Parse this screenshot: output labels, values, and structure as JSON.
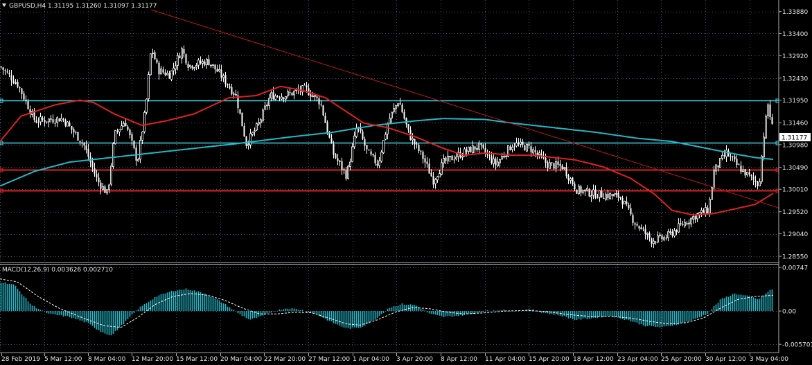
{
  "header": {
    "symbol_line": "GBPUSD,H4  1.31195 1.31260 1.31097 1.31177",
    "current_price": "1.31177"
  },
  "macd_header": "MACD(12,26,9) 0.003626 0.002710",
  "colors": {
    "background": "#000000",
    "grid": "#4d5566",
    "candle": "#ffffff",
    "ma_fast": "#e02020",
    "ma_slow": "#20b8c8",
    "level_cyan": "#40d8e8",
    "level_red": "#e02020",
    "trendline": "#c01818",
    "macd_hist": "#20b8c8",
    "macd_signal": "#ffffff"
  },
  "chart_data": [
    {
      "type": "candlestick",
      "symbol": "GBPUSD",
      "timeframe": "H4",
      "ylim": [
        1.2846,
        1.3392
      ],
      "y_ticks": [
        "1.33880",
        "1.33400",
        "1.32920",
        "1.32430",
        "1.31950",
        "1.31460",
        "1.30980",
        "1.30490",
        "1.30010",
        "1.29520",
        "1.29040",
        "1.28550"
      ],
      "x_ticks": [
        "28 Feb 2019",
        "5 Mar 12:00",
        "8 Mar 04:00",
        "12 Mar 20:00",
        "15 Mar 12:00",
        "20 Mar 04:00",
        "22 Mar 20:00",
        "27 Mar 12:00",
        "1 Apr 04:00",
        "3 Apr 20:00",
        "8 Apr 12:00",
        "11 Apr 04:00",
        "15 Apr 20:00",
        "18 Apr 12:00",
        "23 Apr 04:00",
        "25 Apr 20:00",
        "30 Apr 12:00",
        "3 May 04:00"
      ],
      "price_path": [
        [
          0,
          1.3268
        ],
        [
          25,
          1.323
        ],
        [
          50,
          1.315
        ],
        [
          90,
          1.3155
        ],
        [
          120,
          1.31
        ],
        [
          140,
          1.302
        ],
        [
          155,
          1.299
        ],
        [
          165,
          1.312
        ],
        [
          180,
          1.315
        ],
        [
          198,
          1.306
        ],
        [
          210,
          1.318
        ],
        [
          218,
          1.331
        ],
        [
          228,
          1.326
        ],
        [
          245,
          1.325
        ],
        [
          262,
          1.3305
        ],
        [
          272,
          1.327
        ],
        [
          300,
          1.328
        ],
        [
          318,
          1.325
        ],
        [
          340,
          1.3205
        ],
        [
          355,
          1.31
        ],
        [
          372,
          1.314
        ],
        [
          390,
          1.3205
        ],
        [
          410,
          1.3205
        ],
        [
          440,
          1.322
        ],
        [
          462,
          1.319
        ],
        [
          480,
          1.308
        ],
        [
          500,
          1.303
        ],
        [
          515,
          1.314
        ],
        [
          530,
          1.308
        ],
        [
          545,
          1.3055
        ],
        [
          560,
          1.315
        ],
        [
          575,
          1.3195
        ],
        [
          590,
          1.312
        ],
        [
          610,
          1.307
        ],
        [
          625,
          1.302
        ],
        [
          640,
          1.306
        ],
        [
          660,
          1.3075
        ],
        [
          690,
          1.3095
        ],
        [
          715,
          1.3055
        ],
        [
          740,
          1.31
        ],
        [
          765,
          1.309
        ],
        [
          790,
          1.3055
        ],
        [
          812,
          1.305
        ],
        [
          832,
          1.3
        ],
        [
          860,
          1.299
        ],
        [
          895,
          1.2985
        ],
        [
          915,
          1.293
        ],
        [
          940,
          1.289
        ],
        [
          960,
          1.2895
        ],
        [
          985,
          1.2925
        ],
        [
          1005,
          1.2945
        ],
        [
          1022,
          1.2955
        ],
        [
          1030,
          1.304
        ],
        [
          1048,
          1.308
        ],
        [
          1065,
          1.305
        ],
        [
          1080,
          1.303
        ],
        [
          1095,
          1.301
        ],
        [
          1102,
          1.312
        ],
        [
          1108,
          1.3185
        ],
        [
          1116,
          1.312
        ]
      ],
      "ma_fast": [
        [
          0,
          1.3105
        ],
        [
          30,
          1.316
        ],
        [
          80,
          1.3185
        ],
        [
          115,
          1.3195
        ],
        [
          135,
          1.319
        ],
        [
          165,
          1.3165
        ],
        [
          205,
          1.314
        ],
        [
          240,
          1.315
        ],
        [
          280,
          1.3165
        ],
        [
          330,
          1.32
        ],
        [
          370,
          1.3205
        ],
        [
          405,
          1.3225
        ],
        [
          440,
          1.3215
        ],
        [
          470,
          1.32
        ],
        [
          495,
          1.3175
        ],
        [
          525,
          1.3145
        ],
        [
          560,
          1.3135
        ],
        [
          600,
          1.3115
        ],
        [
          640,
          1.309
        ],
        [
          670,
          1.3075
        ],
        [
          700,
          1.308
        ],
        [
          740,
          1.3075
        ],
        [
          770,
          1.3075
        ],
        [
          800,
          1.307
        ],
        [
          830,
          1.3065
        ],
        [
          870,
          1.305
        ],
        [
          910,
          1.3025
        ],
        [
          945,
          1.299
        ],
        [
          970,
          1.2955
        ],
        [
          1000,
          1.2945
        ],
        [
          1030,
          1.2948
        ],
        [
          1060,
          1.2958
        ],
        [
          1090,
          1.2968
        ],
        [
          1116,
          1.2992
        ]
      ],
      "ma_slow": [
        [
          0,
          1.3008
        ],
        [
          50,
          1.304
        ],
        [
          100,
          1.306
        ],
        [
          160,
          1.307
        ],
        [
          220,
          1.308
        ],
        [
          280,
          1.309
        ],
        [
          340,
          1.31
        ],
        [
          420,
          1.3115
        ],
        [
          480,
          1.3125
        ],
        [
          540,
          1.314
        ],
        [
          600,
          1.315
        ],
        [
          640,
          1.3155
        ],
        [
          700,
          1.3153
        ],
        [
          740,
          1.3145
        ],
        [
          800,
          1.3135
        ],
        [
          860,
          1.3125
        ],
        [
          920,
          1.3112
        ],
        [
          970,
          1.3105
        ],
        [
          1020,
          1.309
        ],
        [
          1060,
          1.3078
        ],
        [
          1090,
          1.307
        ],
        [
          1116,
          1.3066
        ]
      ],
      "levels": [
        {
          "price": 1.3195,
          "color": "cyan"
        },
        {
          "price": 1.3102,
          "color": "cyan"
        },
        {
          "price": 1.3044,
          "color": "red"
        },
        {
          "price": 1.2999,
          "color": "red"
        }
      ],
      "trendline": [
        [
          218,
          1.3392
        ],
        [
          1125,
          1.296
        ]
      ]
    },
    {
      "type": "macd",
      "params": "12,26,9",
      "main": 0.003626,
      "signal": 0.00271,
      "ylim": [
        -0.0058,
        0.0076
      ],
      "y_ticks": [
        "0.00747",
        "0.00",
        "-0.005703"
      ],
      "histogram_path": [
        [
          0,
          0.005
        ],
        [
          20,
          0.0045
        ],
        [
          45,
          0.001
        ],
        [
          70,
          -0.0005
        ],
        [
          100,
          -0.001
        ],
        [
          125,
          -0.002
        ],
        [
          145,
          -0.0035
        ],
        [
          160,
          -0.0042
        ],
        [
          175,
          -0.0025
        ],
        [
          200,
          0.0005
        ],
        [
          225,
          0.0025
        ],
        [
          250,
          0.0035
        ],
        [
          270,
          0.0038
        ],
        [
          295,
          0.003
        ],
        [
          320,
          0.0015
        ],
        [
          345,
          -0.0005
        ],
        [
          360,
          -0.0015
        ],
        [
          375,
          -0.001
        ],
        [
          395,
          0.0
        ],
        [
          415,
          0.0005
        ],
        [
          435,
          0.0002
        ],
        [
          455,
          -0.0005
        ],
        [
          480,
          -0.002
        ],
        [
          500,
          -0.003
        ],
        [
          520,
          -0.0028
        ],
        [
          540,
          -0.0015
        ],
        [
          560,
          0.0005
        ],
        [
          580,
          0.0012
        ],
        [
          600,
          0.001
        ],
        [
          620,
          -0.0005
        ],
        [
          640,
          -0.001
        ],
        [
          660,
          -0.0008
        ],
        [
          680,
          -0.0005
        ],
        [
          700,
          0.0
        ],
        [
          720,
          0.0002
        ],
        [
          745,
          0.0
        ],
        [
          765,
          0.0003
        ],
        [
          785,
          -0.0003
        ],
        [
          810,
          -0.0008
        ],
        [
          830,
          -0.0015
        ],
        [
          855,
          -0.0012
        ],
        [
          880,
          -0.0008
        ],
        [
          905,
          -0.0015
        ],
        [
          930,
          -0.0025
        ],
        [
          955,
          -0.0028
        ],
        [
          980,
          -0.0022
        ],
        [
          1000,
          -0.0015
        ],
        [
          1020,
          -0.0005
        ],
        [
          1040,
          0.002
        ],
        [
          1060,
          0.003
        ],
        [
          1080,
          0.0025
        ],
        [
          1095,
          0.002
        ],
        [
          1110,
          0.0035
        ],
        [
          1116,
          0.0038
        ]
      ],
      "signal_path": [
        [
          0,
          0.0055
        ],
        [
          25,
          0.005
        ],
        [
          55,
          0.0025
        ],
        [
          85,
          0.0005
        ],
        [
          120,
          -0.0012
        ],
        [
          150,
          -0.0025
        ],
        [
          175,
          -0.0028
        ],
        [
          200,
          -0.001
        ],
        [
          225,
          0.0012
        ],
        [
          250,
          0.0025
        ],
        [
          275,
          0.003
        ],
        [
          300,
          0.0027
        ],
        [
          325,
          0.0018
        ],
        [
          350,
          0.0005
        ],
        [
          375,
          -0.0005
        ],
        [
          400,
          -0.0005
        ],
        [
          425,
          -0.0002
        ],
        [
          450,
          -0.0003
        ],
        [
          475,
          -0.0012
        ],
        [
          500,
          -0.0022
        ],
        [
          520,
          -0.0024
        ],
        [
          545,
          -0.0015
        ],
        [
          570,
          -0.0002
        ],
        [
          595,
          0.0006
        ],
        [
          620,
          0.0004
        ],
        [
          645,
          -0.0002
        ],
        [
          670,
          -0.0005
        ],
        [
          700,
          -0.0003
        ],
        [
          730,
          0.0
        ],
        [
          760,
          0.0001
        ],
        [
          790,
          -0.0001
        ],
        [
          820,
          -0.0006
        ],
        [
          850,
          -0.0009
        ],
        [
          880,
          -0.0009
        ],
        [
          910,
          -0.0012
        ],
        [
          940,
          -0.0018
        ],
        [
          965,
          -0.0022
        ],
        [
          990,
          -0.002
        ],
        [
          1015,
          -0.0012
        ],
        [
          1040,
          0.0005
        ],
        [
          1065,
          0.002
        ],
        [
          1090,
          0.0025
        ],
        [
          1116,
          0.0027
        ]
      ]
    }
  ]
}
